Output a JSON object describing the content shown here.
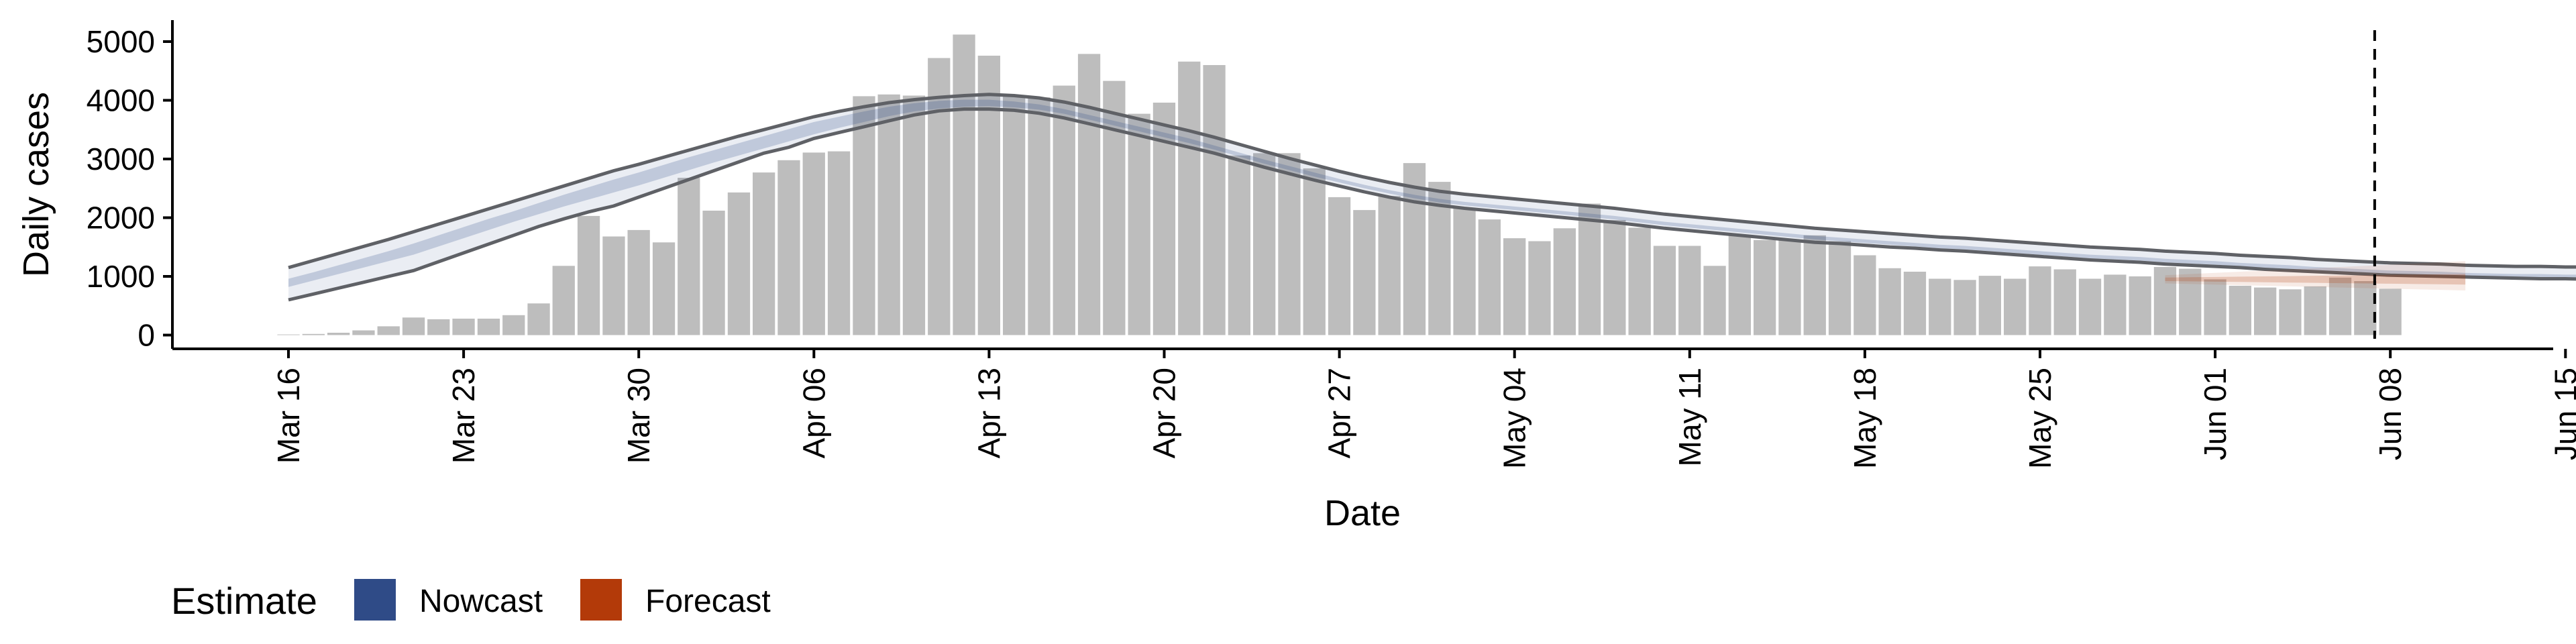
{
  "chart_data": {
    "type": "bar",
    "title": "",
    "xlabel": "Date",
    "ylabel": "Daily cases",
    "xlim": [
      "2020-03-16",
      "2020-06-15"
    ],
    "ylim": [
      0,
      5000
    ],
    "grid": false,
    "x_ticks": [
      "Mar 16",
      "Mar 23",
      "Mar 30",
      "Apr 06",
      "Apr 13",
      "Apr 20",
      "Apr 27",
      "May 04",
      "May 11",
      "May 18",
      "May 25",
      "Jun 01",
      "Jun 08",
      "Jun 15"
    ],
    "y_ticks": [
      "0",
      "1000",
      "2000",
      "3000",
      "4000",
      "5000"
    ],
    "bar_color": "#bdbdbd",
    "bars": {
      "start_date": "2020-03-16",
      "values": [
        10,
        20,
        40,
        80,
        150,
        300,
        270,
        280,
        280,
        340,
        540,
        1180,
        2030,
        1680,
        1790,
        1580,
        2680,
        2120,
        2430,
        2770,
        2980,
        3110,
        3130,
        4070,
        4100,
        4080,
        4720,
        5120,
        4760,
        4080,
        4050,
        4250,
        4790,
        4330,
        3770,
        3960,
        4660,
        4600,
        3060,
        3100,
        3100,
        2840,
        2350,
        2130,
        2370,
        2930,
        2610,
        2170,
        1970,
        1650,
        1600,
        1820,
        2240,
        1960,
        1830,
        1520,
        1520,
        1180,
        1700,
        1620,
        1620,
        1700,
        1600,
        1360,
        1140,
        1080,
        960,
        940,
        1010,
        960,
        1170,
        1120,
        960,
        1030,
        1000,
        1160,
        1130,
        950,
        840,
        810,
        780,
        830,
        980,
        920,
        790
      ]
    },
    "annotations": {
      "vline_date": "2020-06-07"
    },
    "legend": {
      "title": "Estimate",
      "position": "bottom-left",
      "entries": [
        {
          "label": "Nowcast",
          "color": "#2f4b87"
        },
        {
          "label": "Forecast",
          "color": "#b33a09"
        }
      ]
    },
    "series": [
      {
        "key": "nowcast",
        "color": "#2f4b87",
        "start_date": "2020-03-16",
        "step_days": 1,
        "lower90": [
          600,
          700,
          800,
          900,
          1000,
          1100,
          1250,
          1400,
          1550,
          1700,
          1850,
          1980,
          2100,
          2200,
          2350,
          2500,
          2650,
          2800,
          2950,
          3100,
          3200,
          3350,
          3450,
          3550,
          3650,
          3750,
          3820,
          3850,
          3850,
          3830,
          3780,
          3700,
          3600,
          3500,
          3400,
          3300,
          3200,
          3100,
          2980,
          2860,
          2750,
          2640,
          2540,
          2440,
          2350,
          2270,
          2210,
          2160,
          2120,
          2080,
          2040,
          2000,
          1960,
          1920,
          1870,
          1820,
          1780,
          1740,
          1700,
          1660,
          1620,
          1580,
          1560,
          1530,
          1500,
          1480,
          1450,
          1430,
          1400,
          1370,
          1340,
          1310,
          1280,
          1260,
          1240,
          1210,
          1190,
          1170,
          1150,
          1120,
          1100,
          1080,
          1060,
          1040,
          1020,
          1010,
          1000,
          990,
          980,
          970,
          960,
          960,
          950,
          950,
          950,
          940,
          940,
          940,
          940,
          940,
          940,
          940,
          950
        ],
        "lower50": [
          820,
          930,
          1040,
          1150,
          1260,
          1370,
          1510,
          1650,
          1790,
          1930,
          2060,
          2190,
          2310,
          2430,
          2550,
          2680,
          2810,
          2940,
          3060,
          3180,
          3300,
          3420,
          3530,
          3630,
          3730,
          3810,
          3860,
          3890,
          3900,
          3880,
          3840,
          3770,
          3670,
          3570,
          3470,
          3370,
          3270,
          3160,
          3040,
          2920,
          2810,
          2700,
          2600,
          2500,
          2410,
          2330,
          2260,
          2210,
          2170,
          2130,
          2090,
          2050,
          2010,
          1970,
          1920,
          1870,
          1830,
          1790,
          1750,
          1710,
          1670,
          1630,
          1600,
          1570,
          1540,
          1510,
          1480,
          1460,
          1430,
          1400,
          1370,
          1340,
          1310,
          1290,
          1270,
          1240,
          1220,
          1200,
          1170,
          1150,
          1130,
          1100,
          1080,
          1060,
          1040,
          1030,
          1020,
          1000,
          990,
          980,
          980,
          970,
          970,
          960,
          960,
          960,
          960,
          960,
          960,
          960,
          960,
          960,
          960
        ],
        "upper50": [
          960,
          1070,
          1190,
          1310,
          1430,
          1560,
          1700,
          1840,
          1980,
          2110,
          2250,
          2390,
          2520,
          2650,
          2770,
          2900,
          3030,
          3150,
          3270,
          3390,
          3510,
          3630,
          3720,
          3810,
          3890,
          3950,
          3990,
          4010,
          4010,
          3980,
          3930,
          3850,
          3750,
          3650,
          3550,
          3450,
          3350,
          3230,
          3110,
          2990,
          2880,
          2770,
          2660,
          2560,
          2470,
          2390,
          2320,
          2270,
          2230,
          2190,
          2150,
          2110,
          2070,
          2030,
          1980,
          1930,
          1890,
          1850,
          1810,
          1770,
          1730,
          1690,
          1660,
          1630,
          1600,
          1570,
          1540,
          1520,
          1490,
          1460,
          1430,
          1400,
          1370,
          1350,
          1330,
          1300,
          1280,
          1260,
          1230,
          1210,
          1190,
          1160,
          1140,
          1120,
          1100,
          1090,
          1080,
          1060,
          1050,
          1040,
          1040,
          1030,
          1030,
          1020,
          1020,
          1020,
          1020,
          1020,
          1020,
          1020,
          1020,
          1020,
          1020
        ],
        "upper90": [
          1150,
          1270,
          1390,
          1510,
          1630,
          1760,
          1890,
          2020,
          2150,
          2280,
          2410,
          2540,
          2670,
          2800,
          2910,
          3030,
          3150,
          3270,
          3390,
          3500,
          3610,
          3720,
          3810,
          3890,
          3960,
          4010,
          4050,
          4080,
          4100,
          4080,
          4040,
          3970,
          3880,
          3780,
          3680,
          3580,
          3480,
          3370,
          3250,
          3130,
          3010,
          2900,
          2790,
          2690,
          2600,
          2520,
          2450,
          2400,
          2360,
          2320,
          2280,
          2240,
          2200,
          2160,
          2110,
          2060,
          2020,
          1980,
          1940,
          1900,
          1860,
          1820,
          1790,
          1760,
          1730,
          1700,
          1670,
          1650,
          1620,
          1590,
          1560,
          1530,
          1500,
          1480,
          1460,
          1430,
          1410,
          1390,
          1360,
          1340,
          1320,
          1290,
          1270,
          1250,
          1230,
          1220,
          1210,
          1190,
          1180,
          1170,
          1170,
          1160,
          1160,
          1150,
          1150,
          1150,
          1150,
          1150,
          1150,
          1150,
          1150,
          1150,
          1150
        ]
      },
      {
        "key": "forecast",
        "color": "#b33a09",
        "start_date": "2020-05-30",
        "step_days": 1,
        "lower90": [
          880,
          870,
          860,
          850,
          840,
          830,
          820,
          810,
          800,
          790,
          780,
          770,
          760
        ],
        "lower50": [
          920,
          915,
          910,
          905,
          900,
          895,
          890,
          885,
          880,
          875,
          870,
          865,
          860
        ],
        "upper50": [
          980,
          985,
          990,
          995,
          1000,
          1005,
          1010,
          1015,
          1020,
          1025,
          1030,
          1035,
          1040
        ],
        "upper90": [
          1020,
          1040,
          1060,
          1080,
          1100,
          1120,
          1140,
          1160,
          1180,
          1200,
          1220,
          1240,
          1260
        ]
      }
    ]
  }
}
